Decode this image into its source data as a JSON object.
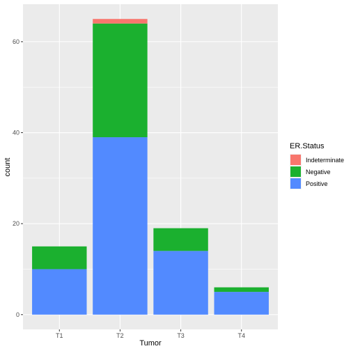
{
  "chart_data": {
    "type": "bar",
    "stacked": true,
    "categories": [
      "T1",
      "T2",
      "T3",
      "T4"
    ],
    "series": [
      {
        "name": "Indeterminate",
        "color": "#F8766D",
        "values": [
          0,
          1,
          0,
          0
        ]
      },
      {
        "name": "Negative",
        "color": "#1BB02F",
        "values": [
          5,
          25,
          5,
          1
        ]
      },
      {
        "name": "Positive",
        "color": "#528AFF",
        "values": [
          10,
          39,
          14,
          5
        ]
      }
    ],
    "stack_order_bottom_to_top": [
      "Positive",
      "Negative",
      "Indeterminate"
    ],
    "xlabel": "Tumor",
    "ylabel": "count",
    "ylim": [
      -3.25,
      68.25
    ],
    "y_ticks": [
      0,
      20,
      40,
      60
    ],
    "grid": true,
    "legend": {
      "title": "ER.Status",
      "position": "right",
      "entries": [
        "Indeterminate",
        "Negative",
        "Positive"
      ]
    },
    "panel_background": "#EBEBEB",
    "grid_color": "#FFFFFF"
  }
}
